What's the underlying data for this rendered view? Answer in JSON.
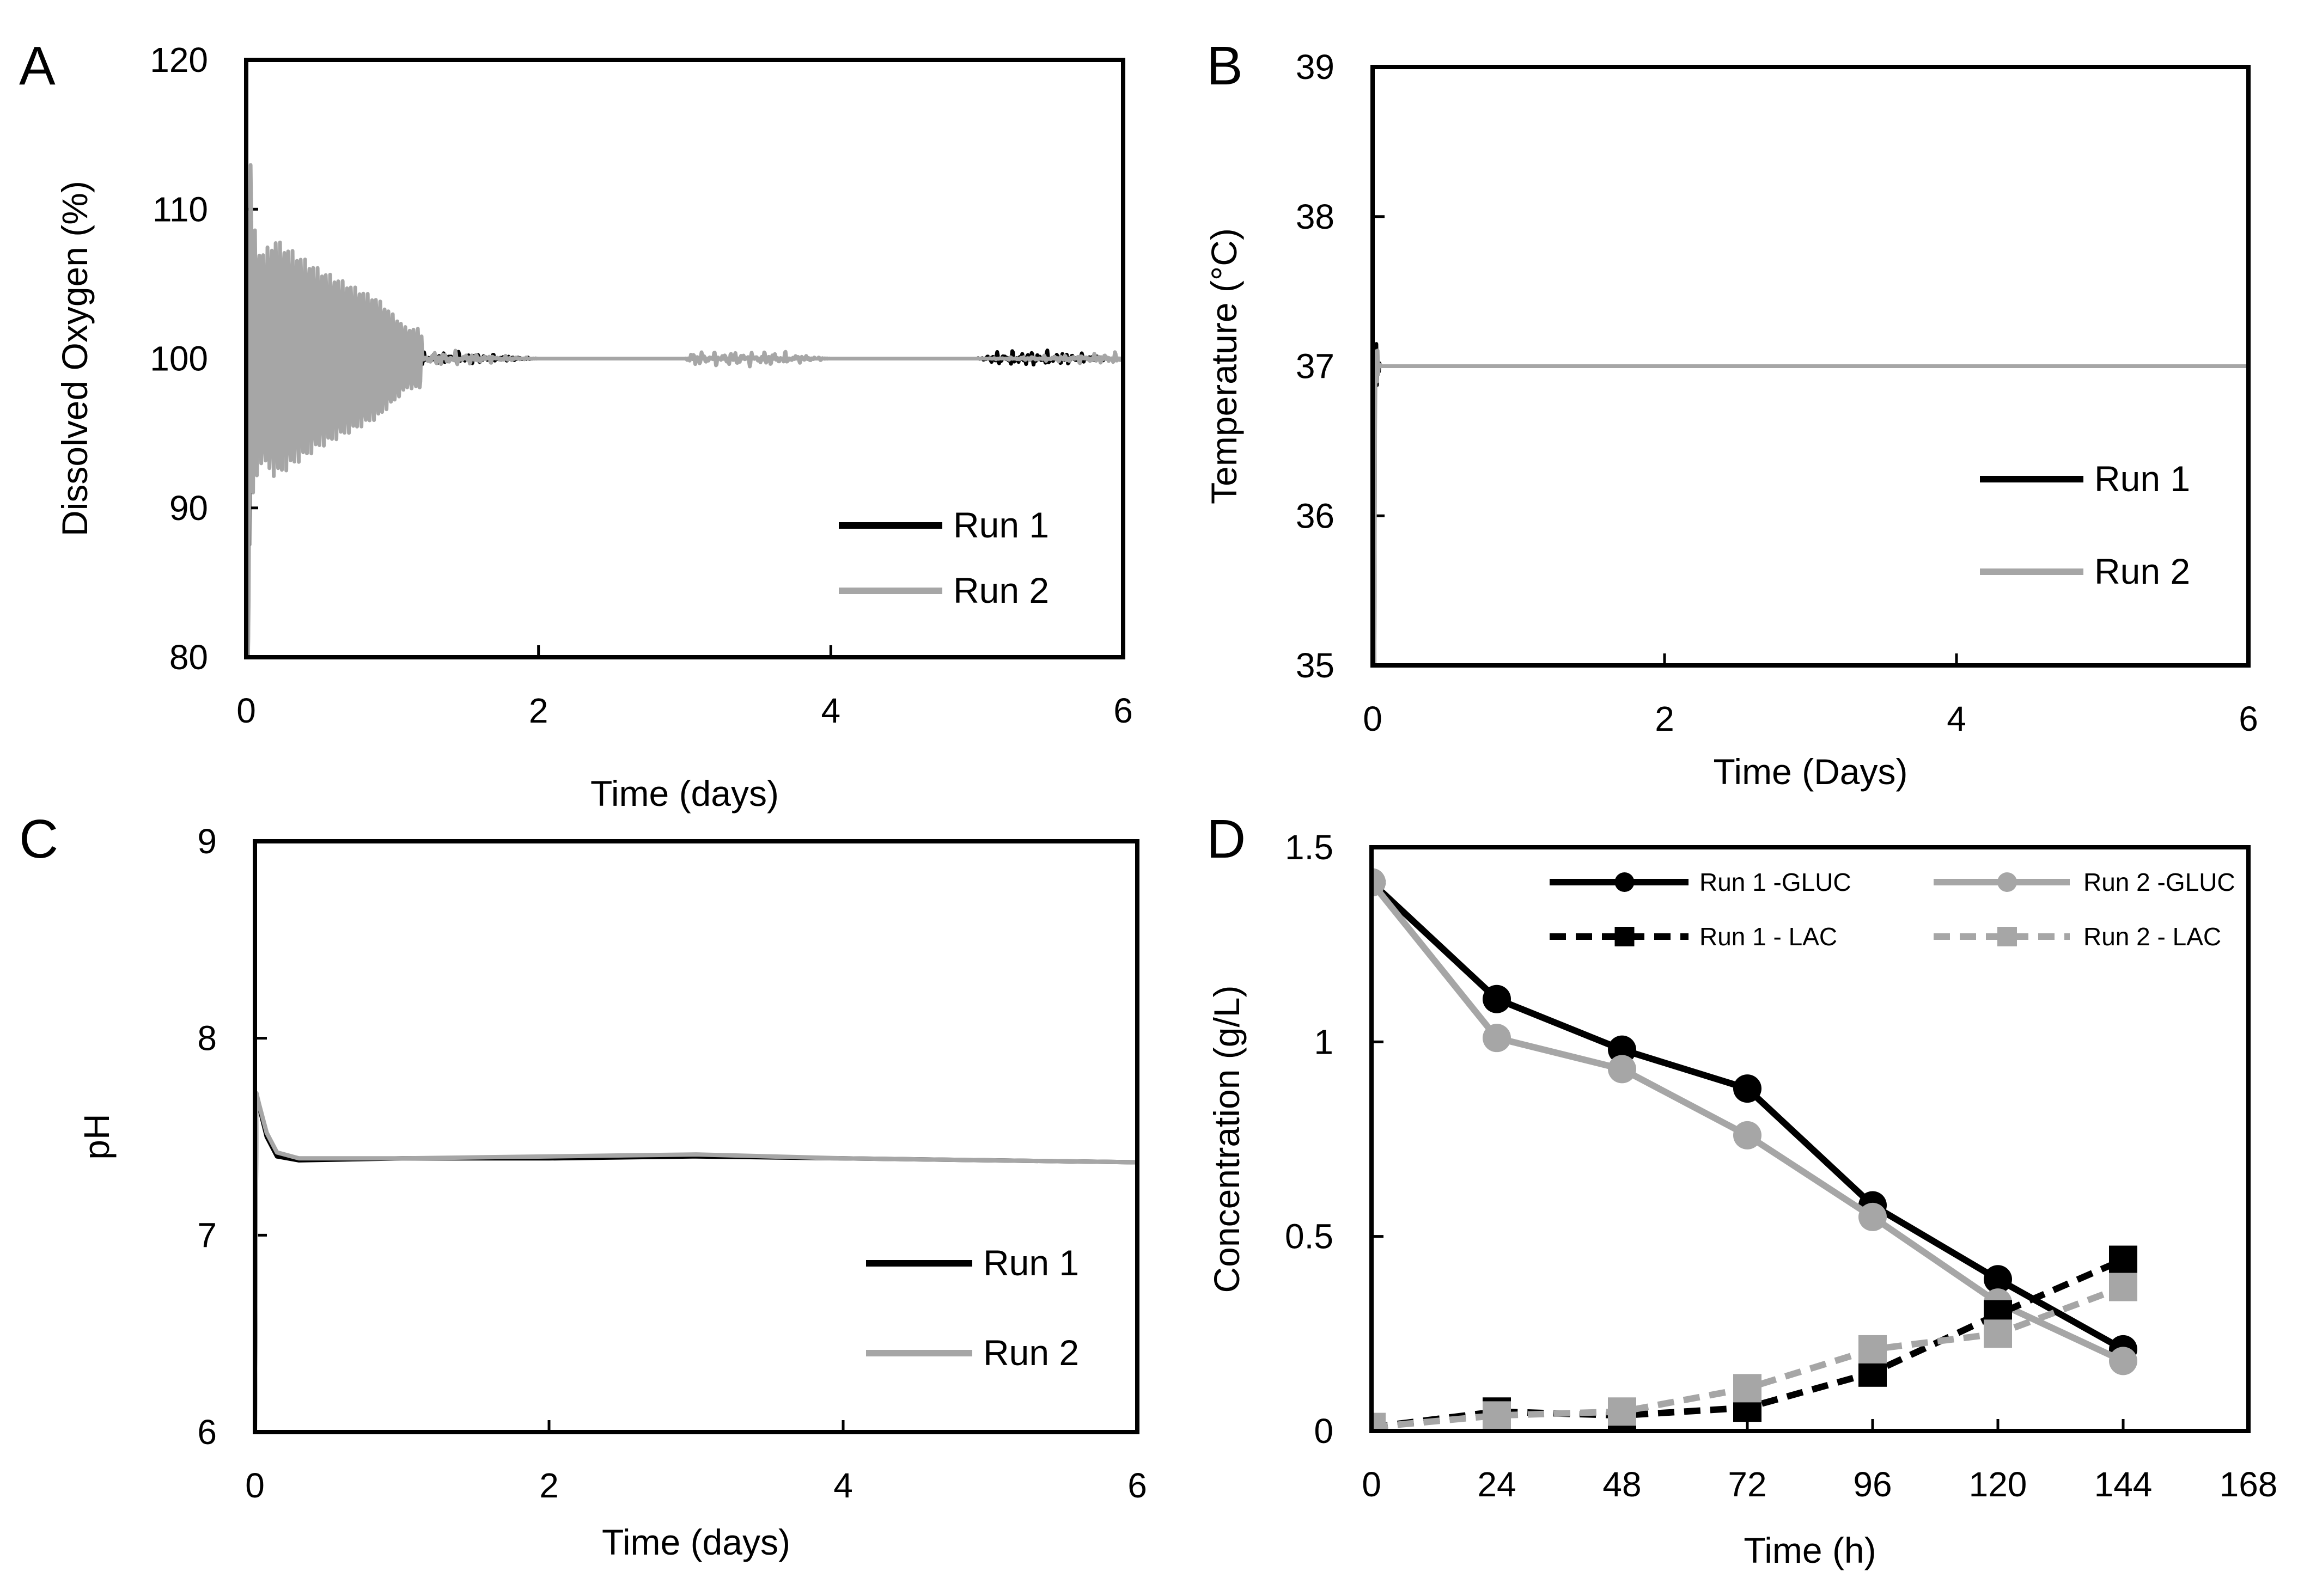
{
  "chart_data": [
    {
      "id": "A",
      "panel_label": "A",
      "type": "line",
      "xlabel": "Time (days)",
      "ylabel": "Dissolved Oxygen (%)",
      "xlim": [
        0,
        6
      ],
      "ylim": [
        80,
        120
      ],
      "xticks": [
        "0",
        "2",
        "4",
        "6"
      ],
      "yticks": [
        "80",
        "90",
        "100",
        "110",
        "120"
      ],
      "legend_position": "bottom-right",
      "series": [
        {
          "name": "Run 1",
          "color": "#000000",
          "setpoint": 100,
          "x": [
            0,
            0.05,
            0.1,
            0.2,
            0.3,
            0.5,
            0.7,
            1.0,
            1.2,
            1.5,
            2,
            3,
            4,
            5,
            5.25,
            6
          ],
          "y": [
            80,
            105,
            97,
            104,
            97,
            101,
            99,
            100,
            100.5,
            99.5,
            100,
            100,
            100,
            100,
            101,
            100
          ]
        },
        {
          "name": "Run 2",
          "color": "#A6A6A6",
          "setpoint": 100,
          "x": [
            0,
            0.05,
            0.1,
            0.2,
            0.35,
            0.5,
            0.7,
            0.9,
            1.0,
            1.1,
            1.2,
            1.5,
            2,
            3,
            3.1,
            4,
            5,
            6
          ],
          "y": [
            80,
            109,
            93,
            108,
            93,
            106,
            95,
            104,
            97,
            102,
            98,
            100.5,
            100,
            100,
            101.5,
            100,
            100,
            100.5
          ]
        }
      ]
    },
    {
      "id": "B",
      "panel_label": "B",
      "type": "line",
      "xlabel": "Time (Days)",
      "ylabel": "Temperature (°C)",
      "xlim": [
        0,
        6
      ],
      "ylim": [
        35,
        39
      ],
      "xticks": [
        "0",
        "2",
        "4",
        "6"
      ],
      "yticks": [
        "35",
        "36",
        "37",
        "38",
        "39"
      ],
      "legend_position": "right",
      "series": [
        {
          "name": "Run 1",
          "color": "#000000",
          "setpoint": 37,
          "x": [
            0,
            0.02,
            0.05,
            1,
            2,
            4,
            6
          ],
          "y": [
            35,
            37.2,
            37,
            37,
            37,
            37,
            37
          ]
        },
        {
          "name": "Run 2",
          "color": "#A6A6A6",
          "setpoint": 37,
          "x": [
            0,
            0.02,
            0.05,
            1,
            2,
            4,
            6
          ],
          "y": [
            35,
            37.2,
            37,
            37,
            37,
            37,
            37
          ]
        }
      ]
    },
    {
      "id": "C",
      "panel_label": "C",
      "type": "line",
      "xlabel": "Time (days)",
      "ylabel": "pH",
      "xlim": [
        0,
        6
      ],
      "ylim": [
        6,
        9
      ],
      "xticks": [
        "0",
        "2",
        "4",
        "6"
      ],
      "yticks": [
        "6",
        "7",
        "8",
        "9"
      ],
      "legend_position": "bottom-right",
      "series": [
        {
          "name": "Run 1",
          "color": "#000000",
          "x": [
            0,
            0.01,
            0.03,
            0.08,
            0.15,
            0.3,
            1,
            2,
            3,
            4,
            5,
            6
          ],
          "y": [
            6,
            7.72,
            7.65,
            7.5,
            7.4,
            7.38,
            7.39,
            7.39,
            7.4,
            7.39,
            7.38,
            7.37
          ]
        },
        {
          "name": "Run 2",
          "color": "#A6A6A6",
          "x": [
            0,
            0.01,
            0.03,
            0.08,
            0.15,
            0.3,
            1,
            2,
            3,
            4,
            5,
            6
          ],
          "y": [
            6,
            7.72,
            7.66,
            7.52,
            7.42,
            7.39,
            7.39,
            7.4,
            7.41,
            7.39,
            7.38,
            7.37
          ]
        }
      ]
    },
    {
      "id": "D",
      "panel_label": "D",
      "type": "line",
      "xlabel": "Time (h)",
      "ylabel": "Concentration (g/L)",
      "xlim": [
        0,
        168
      ],
      "ylim": [
        0,
        1.5
      ],
      "xticks": [
        "0",
        "24",
        "48",
        "72",
        "96",
        "120",
        "144",
        "168"
      ],
      "yticks": [
        "0",
        "0.5",
        "1",
        "1.5"
      ],
      "legend_position": "top",
      "series": [
        {
          "name": "Run 1 -GLUC",
          "color": "#000000",
          "marker": "circle",
          "dash": "solid",
          "x": [
            0,
            24,
            48,
            72,
            96,
            120,
            144
          ],
          "y": [
            1.41,
            1.11,
            0.98,
            0.88,
            0.58,
            0.39,
            0.21
          ]
        },
        {
          "name": "Run 2 -GLUC",
          "color": "#A6A6A6",
          "marker": "circle",
          "dash": "solid",
          "x": [
            0,
            24,
            48,
            72,
            96,
            120,
            144
          ],
          "y": [
            1.41,
            1.01,
            0.93,
            0.76,
            0.55,
            0.33,
            0.18
          ]
        },
        {
          "name": "Run 1 - LAC",
          "color": "#000000",
          "marker": "square",
          "dash": "dashed",
          "x": [
            0,
            24,
            48,
            72,
            96,
            120,
            144
          ],
          "y": [
            0.01,
            0.05,
            0.04,
            0.06,
            0.15,
            0.3,
            0.44
          ]
        },
        {
          "name": "Run 2 - LAC",
          "color": "#A6A6A6",
          "marker": "square",
          "dash": "dashed",
          "x": [
            0,
            24,
            48,
            72,
            96,
            120,
            144
          ],
          "y": [
            0.01,
            0.04,
            0.05,
            0.11,
            0.21,
            0.25,
            0.37
          ]
        }
      ]
    }
  ]
}
